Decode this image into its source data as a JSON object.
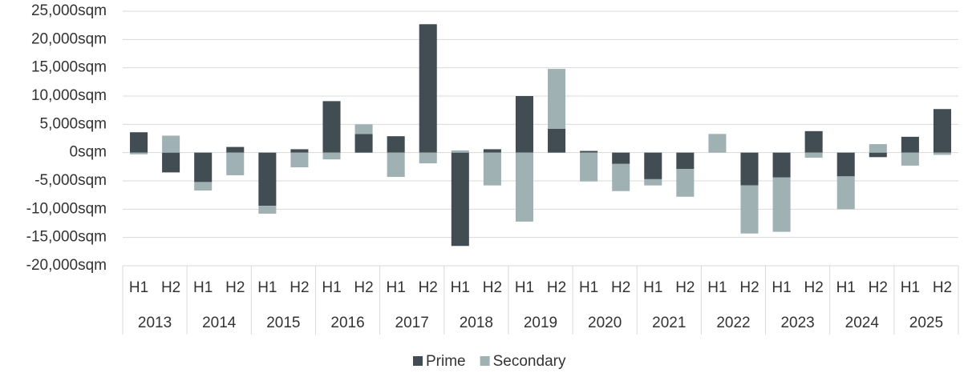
{
  "chart_data": {
    "type": "stacked_bar",
    "categories": [
      "H1",
      "H2",
      "H1",
      "H2",
      "H1",
      "H2",
      "H1",
      "H2",
      "H1",
      "H2",
      "H1",
      "H2",
      "H1",
      "H2",
      "H1",
      "H2",
      "H1",
      "H2",
      "H1",
      "H2",
      "H1",
      "H2",
      "H1",
      "H2",
      "H1",
      "H2"
    ],
    "groups": [
      "2013",
      "2014",
      "2015",
      "2016",
      "2017",
      "2018",
      "2019",
      "2020",
      "2021",
      "2022",
      "2023",
      "2024",
      "2025"
    ],
    "series": [
      {
        "name": "Prime",
        "color": "#414d52",
        "values": [
          3600,
          -3500,
          -5200,
          1000,
          -9400,
          600,
          9100,
          3300,
          2900,
          22700,
          -16500,
          600,
          10000,
          4200,
          300,
          -2000,
          -4700,
          -2900,
          0,
          -5800,
          -4400,
          3800,
          -4200,
          -800,
          2800,
          7700
        ]
      },
      {
        "name": "Secondary",
        "color": "#9fb1b3",
        "values": [
          -300,
          3000,
          -1500,
          -4000,
          -1400,
          -2600,
          -1200,
          1700,
          -4300,
          -1900,
          400,
          -5800,
          -12200,
          10600,
          -5100,
          -4800,
          -1100,
          -4900,
          3300,
          -8500,
          -9600,
          -900,
          -5800,
          1500,
          -2300,
          -400
        ]
      }
    ],
    "ylim": [
      -20000,
      25000
    ],
    "yticks": [
      {
        "value": -20000,
        "label": "-20,000sqm"
      },
      {
        "value": -15000,
        "label": "-15,000sqm"
      },
      {
        "value": -10000,
        "label": "-10,000sqm"
      },
      {
        "value": -5000,
        "label": "-5,000sqm"
      },
      {
        "value": 0,
        "label": "0sqm"
      },
      {
        "value": 5000,
        "label": "5,000sqm"
      },
      {
        "value": 10000,
        "label": "10,000sqm"
      },
      {
        "value": 15000,
        "label": "15,000sqm"
      },
      {
        "value": 20000,
        "label": "20,000sqm"
      },
      {
        "value": 25000,
        "label": "25,000sqm"
      }
    ],
    "grid": true,
    "legend": "bottom"
  }
}
